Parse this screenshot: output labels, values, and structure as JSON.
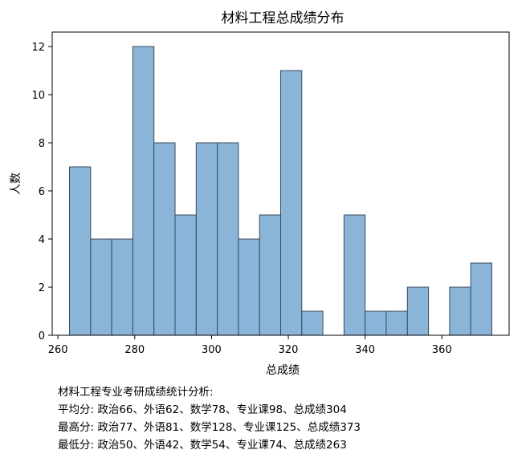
{
  "chart_data": {
    "type": "bar",
    "title": "材料工程总成绩分布",
    "xlabel": "总成绩",
    "ylabel": "人数",
    "xlim": [
      258.5,
      377.5
    ],
    "ylim": [
      0,
      12.6
    ],
    "xticks": [
      260,
      280,
      300,
      320,
      340,
      360
    ],
    "yticks": [
      0,
      2,
      4,
      6,
      8,
      10,
      12
    ],
    "bin_edges": [
      263,
      268.5,
      274,
      279.5,
      285,
      290.5,
      296,
      301.5,
      307,
      312.5,
      318,
      323.5,
      329,
      334.5,
      340,
      345.5,
      351,
      356.5,
      362,
      367.5,
      373
    ],
    "values": [
      7,
      4,
      4,
      12,
      8,
      5,
      8,
      8,
      4,
      5,
      11,
      1,
      0,
      5,
      1,
      1,
      2,
      0,
      2,
      3
    ],
    "bar_color": "#8ab4d8",
    "edge_color": "#3a4a5a",
    "grid": false
  },
  "stats": {
    "heading": "材料工程专业考研成绩统计分析:",
    "avg": "平均分:  政治66、外语62、数学78、专业课98、总成绩304",
    "max": "最高分:  政治77、外语81、数学128、专业课125、总成绩373",
    "min": "最低分:  政治50、外语42、数学54、专业课74、总成绩263"
  }
}
